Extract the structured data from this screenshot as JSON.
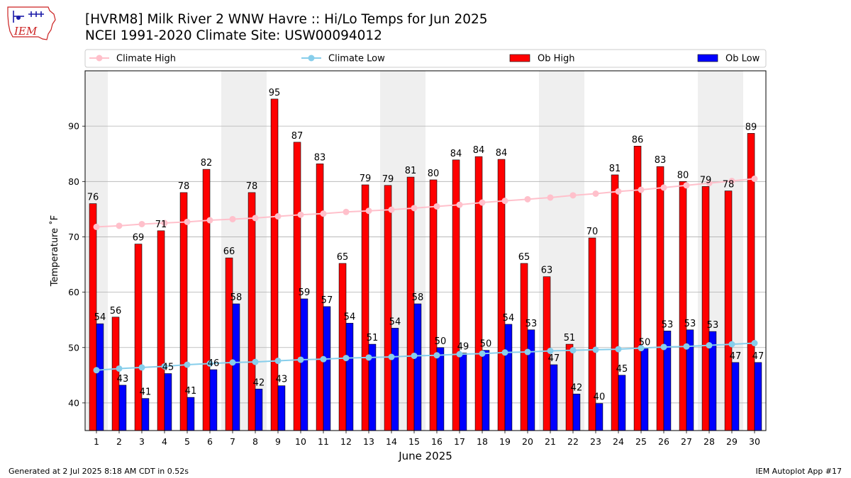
{
  "header": {
    "title_line1": "[HVRM8] Milk River 2 WNW Havre :: Hi/Lo Temps for Jun 2025",
    "title_line2": "NCEI 1991-2020 Climate Site: USW00094012"
  },
  "logo": {
    "text": "IEM",
    "color": "#cc2222"
  },
  "footer": {
    "generated": "Generated at 2 Jul 2025 8:18 AM CDT in 0.52s",
    "app": "IEM Autoplot App #17"
  },
  "chart_data": {
    "type": "bar",
    "xlabel": "June 2025",
    "ylabel": "Temperature ˚F",
    "ylim": [
      35,
      100
    ],
    "yticks": [
      40,
      50,
      60,
      70,
      80,
      90
    ],
    "grid": "horizontal",
    "legend_position": "top",
    "categories": [
      "1",
      "2",
      "3",
      "4",
      "5",
      "6",
      "7",
      "8",
      "9",
      "10",
      "11",
      "12",
      "13",
      "14",
      "15",
      "16",
      "17",
      "18",
      "19",
      "20",
      "21",
      "22",
      "23",
      "24",
      "25",
      "26",
      "27",
      "28",
      "29",
      "30"
    ],
    "shaded_weekend_days": [
      [
        1,
        1
      ],
      [
        7,
        8
      ],
      [
        14,
        15
      ],
      [
        21,
        22
      ],
      [
        28,
        29
      ]
    ],
    "series": [
      {
        "name": "Ob High",
        "kind": "bar",
        "color": "#ff0000",
        "values": [
          76,
          55.5,
          68.7,
          71.1,
          78,
          82.2,
          66.2,
          78,
          94.9,
          87.1,
          83.2,
          65.2,
          79.4,
          79.3,
          80.8,
          80.3,
          83.9,
          84.5,
          84,
          65.2,
          62.8,
          50.6,
          69.8,
          81.2,
          86.4,
          82.7,
          80,
          79.1,
          78.3,
          88.7
        ],
        "labels": [
          "76",
          "56",
          "69",
          "71",
          "78",
          "82",
          "66",
          "78",
          "95",
          "87",
          "83",
          "65",
          "79",
          "79",
          "81",
          "80",
          "84",
          "84",
          "84",
          "65",
          "63",
          "51",
          "70",
          "81",
          "86",
          "83",
          "80",
          "79",
          "78",
          "89"
        ]
      },
      {
        "name": "Ob Low",
        "kind": "bar",
        "color": "#0000ff",
        "values": [
          54.3,
          43.2,
          40.8,
          45.3,
          41,
          46,
          57.9,
          42.5,
          43.1,
          58.8,
          57.4,
          54.4,
          50.6,
          53.5,
          57.9,
          50,
          49,
          49.5,
          54.2,
          53.2,
          46.9,
          41.6,
          39.9,
          45,
          49.8,
          53,
          53.2,
          52.9,
          47.3,
          47.3
        ],
        "labels": [
          "54",
          "43",
          "41",
          "45",
          "41",
          "46",
          "58",
          "42",
          "43",
          "59",
          "57",
          "54",
          "51",
          "54",
          "58",
          "50",
          "49",
          "50",
          "54",
          "53",
          "47",
          "42",
          "40",
          "45",
          "50",
          "53",
          "53",
          "53",
          "47",
          "47"
        ]
      },
      {
        "name": "Climate High",
        "kind": "line",
        "color": "#ffc0cb",
        "values": [
          71.8,
          72,
          72.3,
          72.5,
          72.7,
          73,
          73.2,
          73.4,
          73.7,
          74,
          74.2,
          74.5,
          74.7,
          74.9,
          75.2,
          75.5,
          75.8,
          76.2,
          76.5,
          76.8,
          77.1,
          77.5,
          77.8,
          78.2,
          78.5,
          78.9,
          79.3,
          79.7,
          80.1,
          80.5
        ]
      },
      {
        "name": "Climate Low",
        "kind": "line",
        "color": "#87ceeb",
        "values": [
          45.9,
          46.2,
          46.4,
          46.6,
          46.9,
          47.1,
          47.3,
          47.4,
          47.6,
          47.8,
          47.9,
          48.1,
          48.2,
          48.3,
          48.5,
          48.6,
          48.8,
          48.9,
          49.1,
          49.2,
          49.4,
          49.5,
          49.6,
          49.7,
          49.9,
          50.1,
          50.2,
          50.4,
          50.6,
          50.8
        ]
      }
    ]
  }
}
